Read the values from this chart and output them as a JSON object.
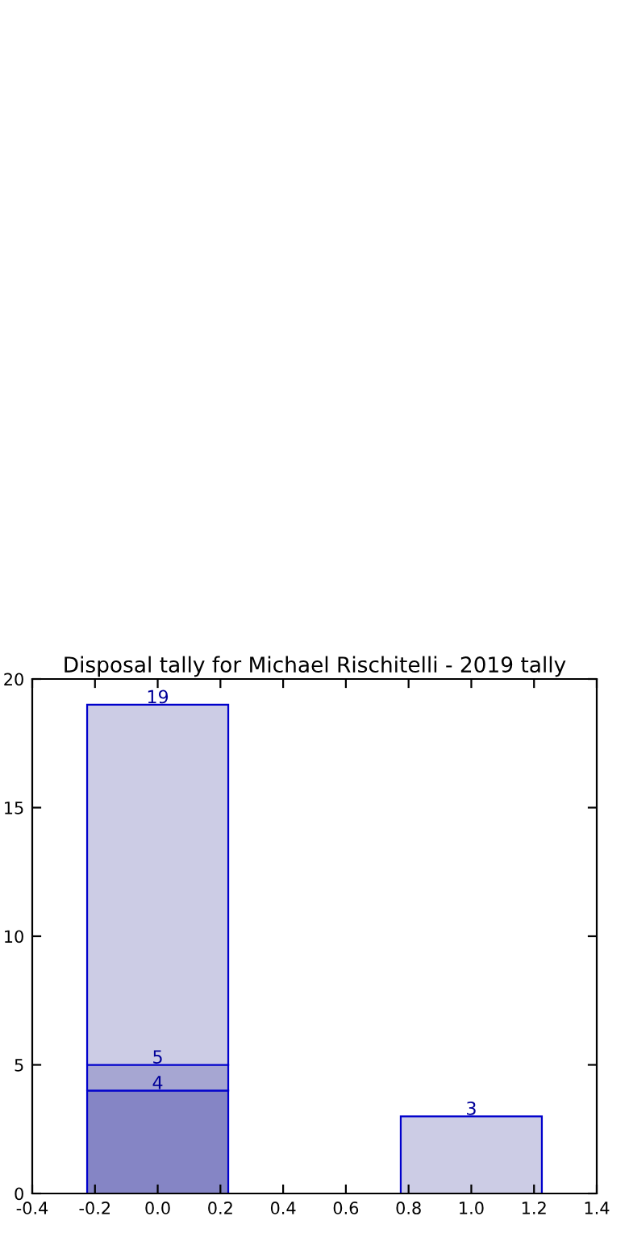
{
  "chart_data": {
    "type": "bar",
    "title": "Disposal tally for Michael Rischitelli - 2019 tally",
    "stacked": true,
    "series": [
      {
        "values": [
          4,
          null
        ],
        "color": "#8585c5"
      },
      {
        "values": [
          1,
          null
        ],
        "color": "#a6a6d2"
      },
      {
        "values": [
          14,
          3
        ],
        "color": "#ccccE5"
      }
    ],
    "x": [
      0.0,
      1.0
    ],
    "totals": [
      "19",
      "3"
    ],
    "annotations": [
      {
        "text": "5",
        "x": 0.0,
        "y": 5
      },
      {
        "text": "4",
        "x": 0.0,
        "y": 4
      }
    ],
    "xlim": [
      -0.4,
      1.4
    ],
    "xticks": [
      -0.4,
      -0.2,
      {
        "value": 0,
        "label": "0.0"
      },
      0.2,
      0.4,
      0.6,
      0.8,
      {
        "value": 1,
        "label": "1.0"
      },
      1.2,
      1.4
    ],
    "ylim": [
      0,
      20
    ],
    "yticks": [
      0,
      5,
      10,
      15,
      20
    ],
    "grid": false,
    "legend": false
  }
}
